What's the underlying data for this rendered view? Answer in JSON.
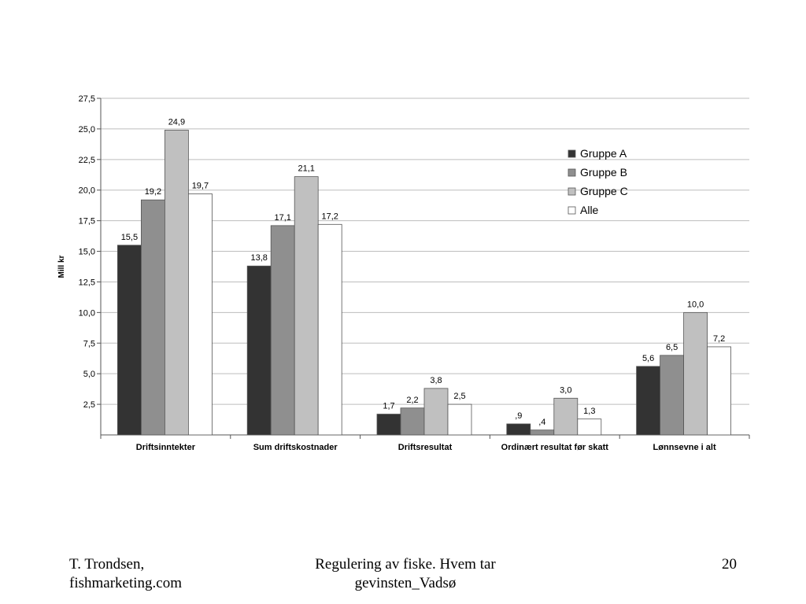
{
  "footer": {
    "author": "T. Trondsen,\nfishmarketing.com",
    "title": "Regulering av fiske. Hvem tar\ngevinsten_Vadsø",
    "page_number": "20"
  },
  "chart_data": {
    "type": "bar",
    "ylabel": "Mill kr",
    "xlabel": "",
    "ylim": [
      0,
      27.5
    ],
    "y_ticks": [
      "2,5",
      "5,0",
      "7,5",
      "10,0",
      "12,5",
      "15,0",
      "17,5",
      "20,0",
      "22,5",
      "25,0",
      "27,5"
    ],
    "grid": true,
    "legend_position": "top-right",
    "categories": [
      "Driftsinntekter",
      "Sum driftskostnader",
      "Driftsresultat",
      "Ordinært resultat før skatt",
      "Lønnsevne i alt"
    ],
    "series": [
      {
        "name": "Gruppe A",
        "color": "#333333",
        "values": [
          15.5,
          13.8,
          1.7,
          0.9,
          5.6
        ],
        "labels": [
          "15,5",
          "13,8",
          "1,7",
          ",9",
          "5,6"
        ]
      },
      {
        "name": "Gruppe B",
        "color": "#8f8f8f",
        "values": [
          19.2,
          17.1,
          2.2,
          0.4,
          6.5
        ],
        "labels": [
          "19,2",
          "17,1",
          "2,2",
          ",4",
          "6,5"
        ]
      },
      {
        "name": "Gruppe C",
        "color": "#c0c0c0",
        "values": [
          24.9,
          21.1,
          3.8,
          3.0,
          10.0
        ],
        "labels": [
          "24,9",
          "21,1",
          "3,8",
          "3,0",
          "10,0"
        ]
      },
      {
        "name": "Alle",
        "color": "#ffffff",
        "values": [
          19.7,
          17.2,
          2.5,
          1.3,
          7.2
        ],
        "labels": [
          "19,7",
          "17,2",
          "2,5",
          "1,3",
          "7,2"
        ]
      }
    ]
  }
}
